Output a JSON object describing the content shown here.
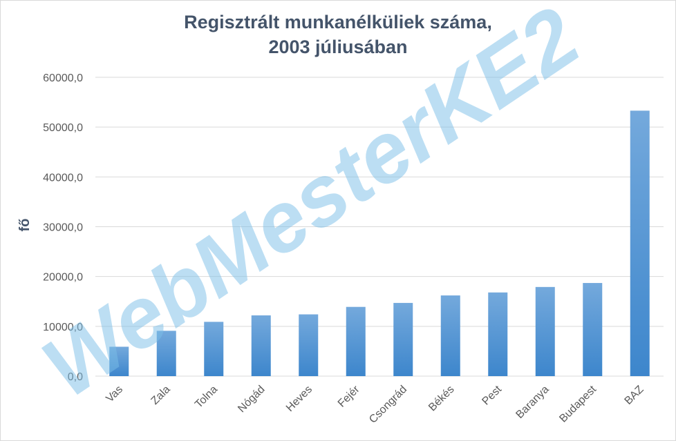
{
  "chart_data": {
    "type": "bar",
    "title": [
      "Regisztrált munkanélküliek száma,",
      "2003 júliusában"
    ],
    "xlabel": "",
    "ylabel": "fő",
    "categories": [
      "Vas",
      "Zala",
      "Tolna",
      "Nógád",
      "Heves",
      "Fejér",
      "Csongrád",
      "Békés",
      "Pest",
      "Baranya",
      "Budapest",
      "BAZ"
    ],
    "values": [
      5900,
      9100,
      10900,
      12200,
      12400,
      13900,
      14700,
      16200,
      16800,
      17900,
      18700,
      53300
    ],
    "ylim": [
      0,
      60000
    ],
    "yticks": [
      "0,0",
      "10000,0",
      "20000,0",
      "30000,0",
      "40000,0",
      "50000,0",
      "60000,0"
    ],
    "ytick_values": [
      0,
      10000,
      20000,
      30000,
      40000,
      50000,
      60000
    ],
    "grid": true,
    "legend": "none",
    "colors": {
      "bar_top": "#74a9dc",
      "bar_bottom": "#3d86cc",
      "grid": "#d9d9d9",
      "title": "#44546a"
    }
  },
  "watermark": "WebMesterKE2"
}
